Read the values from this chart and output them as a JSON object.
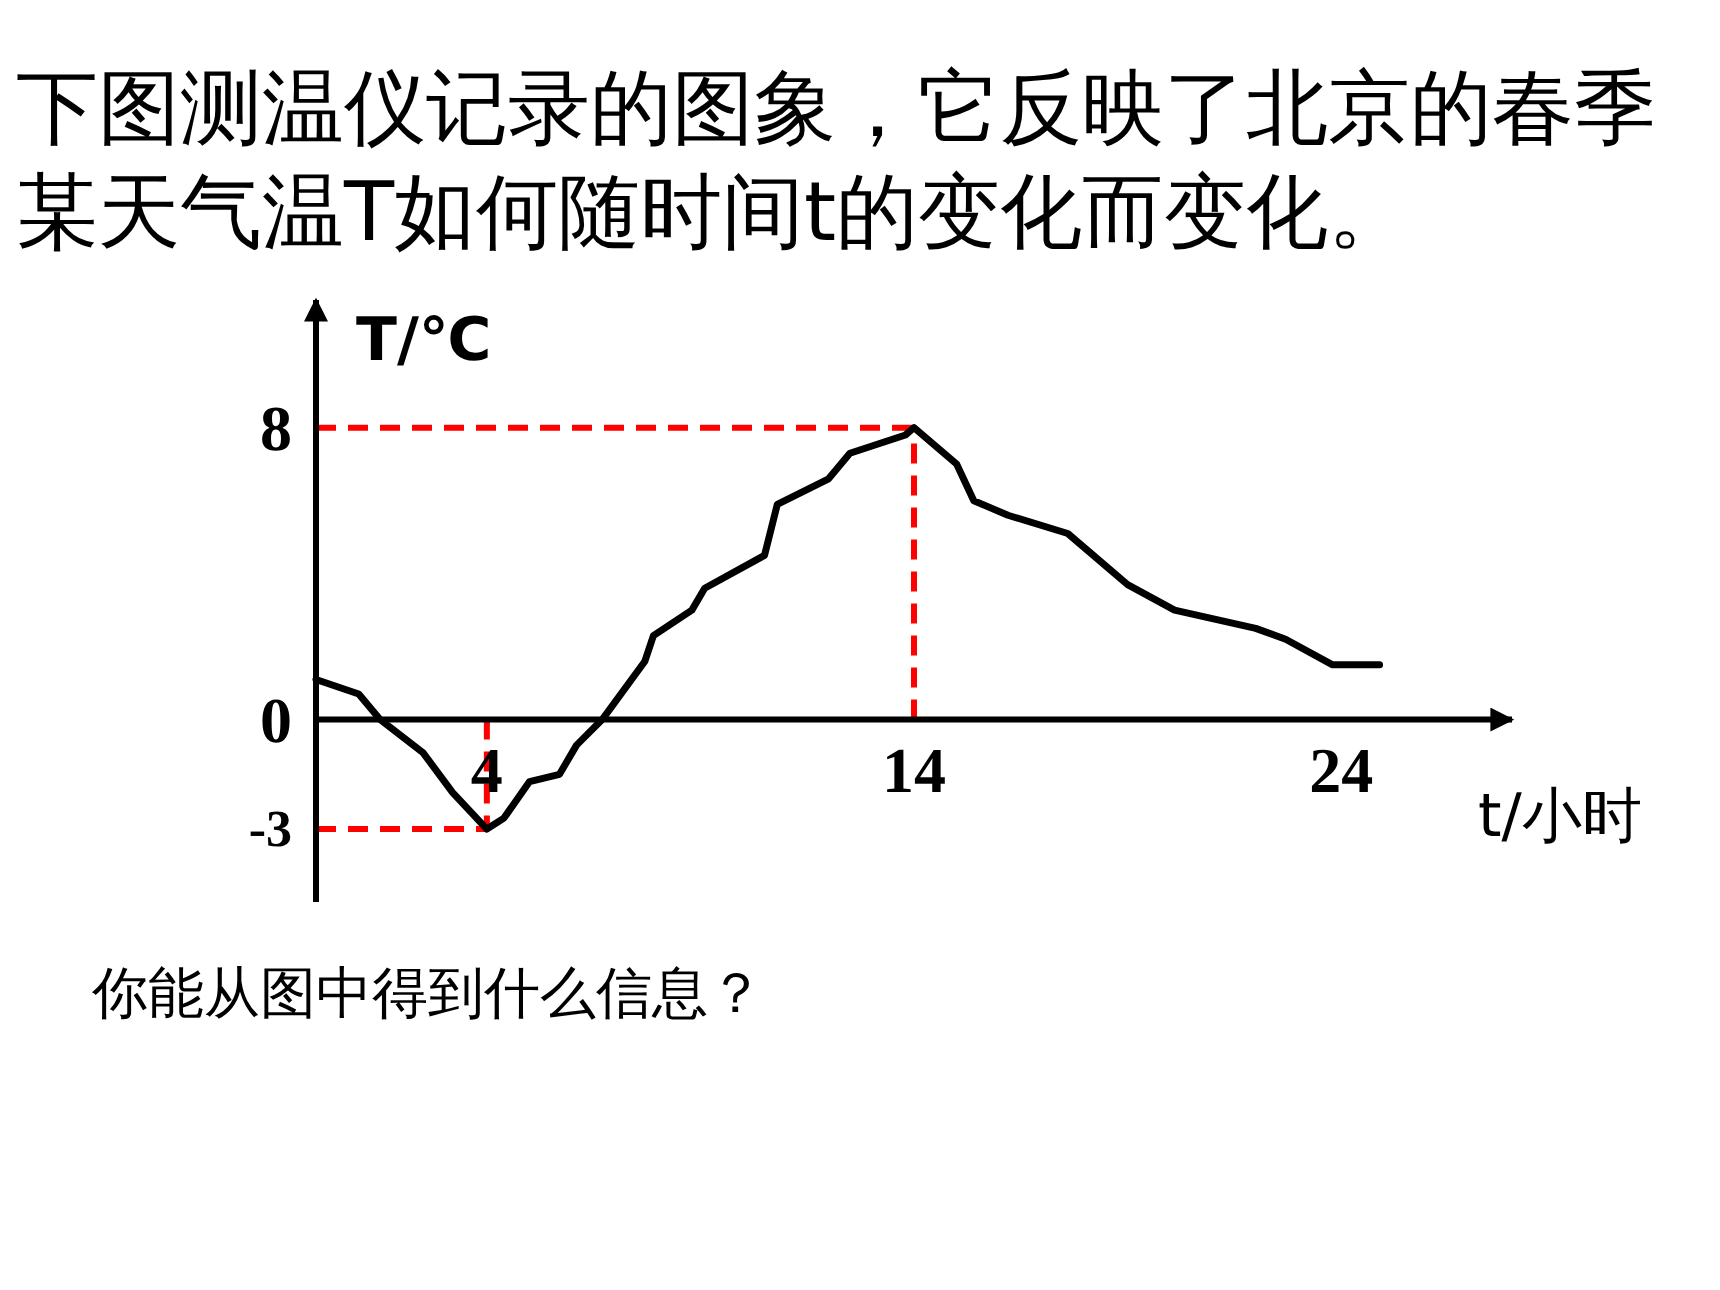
{
  "chart_data": {
    "type": "line",
    "title": "下图测温仪记录的图象，它反映了北京的春季某天气温T如何随时间t的变化而变化。",
    "xlabel": "t/小时",
    "ylabel": "T/℃",
    "annotations": [
      "你能从图中得到什么信息？"
    ],
    "xlim": [
      0,
      28
    ],
    "ylim": [
      -5,
      11.5
    ],
    "xticks": [
      4,
      14,
      24
    ],
    "yticks": [
      8,
      0,
      -3
    ],
    "x": [
      0,
      1.0,
      1.5,
      2.5,
      3.2,
      4,
      4.4,
      5.0,
      5.7,
      6.1,
      6.7,
      7.7,
      7.9,
      8.8,
      9.1,
      10.5,
      10.8,
      12.0,
      12.5,
      13.8,
      14,
      15.0,
      15.4,
      16.2,
      17.6,
      19.0,
      20.1,
      22.0,
      22.7,
      23.8,
      24.9
    ],
    "series": [
      {
        "color": "#000000",
        "values": [
          1.1,
          0.7,
          0,
          -0.9,
          -2.0,
          -3,
          -2.7,
          -1.7,
          -1.5,
          -0.7,
          0,
          1.6,
          2.3,
          3.0,
          3.6,
          4.5,
          5.9,
          6.6,
          7.3,
          7.8,
          8,
          7.0,
          6.0,
          5.6,
          5.1,
          3.7,
          3.0,
          2.5,
          2.2,
          1.5,
          1.5
        ]
      }
    ],
    "ref_lines": [
      {
        "axis": "x",
        "value": 4,
        "color": "#ff0000",
        "line_style": "dashed"
      },
      {
        "axis": "x",
        "value": 14,
        "color": "#ff0000",
        "line_style": "dashed"
      },
      {
        "axis": "y",
        "value": 8,
        "color": "#ff0000",
        "line_style": "dashed"
      },
      {
        "axis": "y",
        "value": -3,
        "color": "#ff0000",
        "line_style": "dashed"
      }
    ],
    "grid": false,
    "marker": "none",
    "line_style": "solid"
  }
}
